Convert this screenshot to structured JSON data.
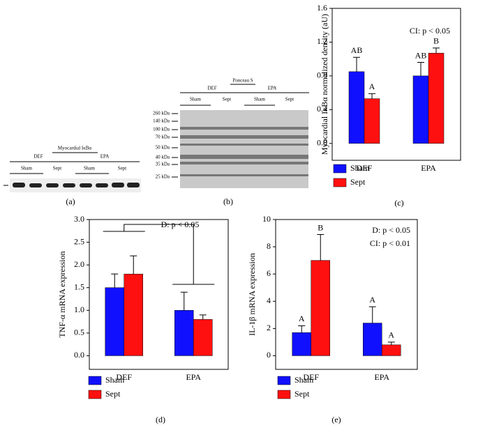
{
  "blots": {
    "a": {
      "title": "Myocardial IκBα",
      "groups": [
        "DEF",
        "EPA"
      ],
      "lanes": [
        "Sham",
        "Sept",
        "Sham",
        "Sept"
      ],
      "panel": "(a)"
    },
    "b": {
      "title": "Ponceau S",
      "groups": [
        "DEF",
        "EPA"
      ],
      "lanes": [
        "Sham",
        "Sept",
        "Sham",
        "Sept"
      ],
      "markers": [
        "260 kDa",
        "140 kDa",
        "100 kDa",
        "70 kDa",
        "50 kDa",
        "40 kDa",
        "35 kDa",
        "25 kDa"
      ],
      "panel": "(b)"
    }
  },
  "chart_data": [
    {
      "type": "bar",
      "panel": "(c)",
      "y_label": "Myocardial IκBα normalized density (aU)",
      "categories": [
        "DEF",
        "EPA"
      ],
      "series": [
        {
          "name": "Sham",
          "color": "#1010ff",
          "values": [
            0.85,
            0.8
          ],
          "errors": [
            0.17,
            0.16
          ],
          "group_letters": [
            "AB",
            "AB"
          ]
        },
        {
          "name": "Sept",
          "color": "#ff1010",
          "values": [
            0.53,
            1.07
          ],
          "errors": [
            0.06,
            0.06
          ],
          "group_letters": [
            "A",
            "B"
          ]
        }
      ],
      "ylim": [
        -0.2,
        1.6
      ],
      "yticks": [
        {
          "value": 0,
          "label": "0.0"
        },
        0.4,
        0.8,
        1.2,
        1.6
      ],
      "annotations": [
        "CI: p < 0.05"
      ]
    },
    {
      "type": "bar",
      "panel": "(d)",
      "y_label": "TNF-α mRNA expression",
      "categories": [
        "DEF",
        "EPA"
      ],
      "series": [
        {
          "name": "Sham",
          "color": "#1010ff",
          "values": [
            1.5,
            1.0
          ],
          "errors": [
            0.3,
            0.4
          ]
        },
        {
          "name": "Sept",
          "color": "#ff1010",
          "values": [
            1.8,
            0.8
          ],
          "errors": [
            0.4,
            0.1
          ]
        }
      ],
      "ylim": [
        -0.3,
        3.0
      ],
      "yticks": [
        {
          "value": 0,
          "label": "0.0"
        },
        0.5,
        {
          "value": 1,
          "label": "1.0"
        },
        1.5,
        {
          "value": 2,
          "label": "2.0"
        },
        2.5,
        {
          "value": 3,
          "label": "3.0"
        }
      ],
      "annotations": [
        "D: p < 0.05"
      ]
    },
    {
      "type": "bar",
      "panel": "(e)",
      "y_label": "IL-1β mRNA expression",
      "categories": [
        "DEF",
        "EPA"
      ],
      "series": [
        {
          "name": "Sham",
          "color": "#1010ff",
          "values": [
            1.7,
            2.4
          ],
          "errors": [
            0.5,
            1.2
          ],
          "group_letters": [
            "A",
            "A"
          ]
        },
        {
          "name": "Sept",
          "color": "#ff1010",
          "values": [
            7.0,
            0.8
          ],
          "errors": [
            1.9,
            0.2
          ],
          "group_letters": [
            "B",
            "A"
          ]
        }
      ],
      "ylim": [
        -1,
        10
      ],
      "yticks": [
        0,
        2,
        4,
        6,
        8,
        10
      ],
      "annotations": [
        "D: p < 0.05",
        "CI: p < 0.01"
      ]
    }
  ]
}
